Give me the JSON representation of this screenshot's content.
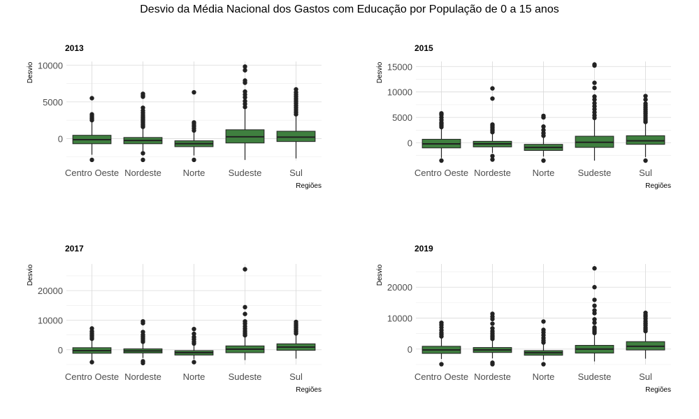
{
  "title": "Desvio da Média Nacional dos Gastos com Educação por População de 0 a 15 anos",
  "colors": {
    "box_fill": "#3f7f3f",
    "box_stroke": "#222222",
    "outlier": "#222222",
    "grid": "#d9d9d9"
  },
  "chart_data": [
    {
      "type": "boxplot",
      "title": "2013",
      "xlabel": "Regiões",
      "ylabel": "Desvio",
      "categories": [
        "Centro Oeste",
        "Nordeste",
        "Norte",
        "Sudeste",
        "Sul"
      ],
      "ylim": [
        -3000,
        10500
      ],
      "yticks": [
        0,
        5000,
        10000
      ],
      "grid": true,
      "boxes": [
        {
          "whisker_low": -2200,
          "q1": -700,
          "median": -150,
          "q3": 450,
          "whisker_high": 2300,
          "outliers": [
            -2900,
            2500,
            2700,
            2900,
            3100,
            3300,
            5500
          ]
        },
        {
          "whisker_low": -1700,
          "q1": -700,
          "median": -250,
          "q3": 150,
          "whisker_high": 1400,
          "outliers": [
            -2900,
            -2000,
            1600,
            1800,
            2000,
            2200,
            2400,
            2600,
            2800,
            3000,
            3200,
            3500,
            3800,
            4200,
            5700,
            5900,
            6100
          ]
        },
        {
          "whisker_low": -2300,
          "q1": -1100,
          "median": -700,
          "q3": -300,
          "whisker_high": 800,
          "outliers": [
            -2900,
            1100,
            1400,
            1700,
            2000,
            2200,
            6300
          ]
        },
        {
          "whisker_low": -2900,
          "q1": -600,
          "median": 250,
          "q3": 1200,
          "whisker_high": 4000,
          "outliers": [
            4300,
            4700,
            5100,
            5600,
            6000,
            6400,
            7600,
            7900,
            9300,
            9800
          ]
        },
        {
          "whisker_low": -2700,
          "q1": -400,
          "median": 200,
          "q3": 1000,
          "whisker_high": 3000,
          "outliers": [
            3300,
            3600,
            3900,
            4200,
            4500,
            4800,
            5100,
            5400,
            5700,
            6000,
            6300,
            6700
          ]
        }
      ]
    },
    {
      "type": "boxplot",
      "title": "2015",
      "xlabel": "Regiões",
      "ylabel": "Desvio",
      "categories": [
        "Centro Oeste",
        "Nordeste",
        "Norte",
        "Sudeste",
        "Sul"
      ],
      "ylim": [
        -3500,
        16000
      ],
      "yticks": [
        0,
        5000,
        10000,
        15000
      ],
      "grid": true,
      "boxes": [
        {
          "whisker_low": -3000,
          "q1": -1000,
          "median": -200,
          "q3": 700,
          "whisker_high": 2800,
          "outliers": [
            -3500,
            3100,
            3400,
            3700,
            4000,
            4500,
            5000,
            5500,
            5800
          ]
        },
        {
          "whisker_low": -2000,
          "q1": -800,
          "median": -200,
          "q3": 300,
          "whisker_high": 1800,
          "outliers": [
            -3300,
            -2600,
            2100,
            2400,
            2700,
            3000,
            3300,
            3600,
            8700,
            10700
          ]
        },
        {
          "whisker_low": -2700,
          "q1": -1500,
          "median": -900,
          "q3": -300,
          "whisker_high": 1100,
          "outliers": [
            -3500,
            1400,
            1900,
            2500,
            3200,
            5000,
            5300
          ]
        },
        {
          "whisker_low": -3500,
          "q1": -900,
          "median": 100,
          "q3": 1300,
          "whisker_high": 4500,
          "outliers": [
            4900,
            5400,
            6000,
            6600,
            7200,
            7800,
            8500,
            9100,
            10800,
            11800,
            15200,
            15400
          ]
        },
        {
          "whisker_low": -2800,
          "q1": -300,
          "median": 400,
          "q3": 1400,
          "whisker_high": 3700,
          "outliers": [
            -3500,
            4100,
            4500,
            4900,
            5300,
            5700,
            6100,
            6500,
            6900,
            7300,
            7700,
            8500,
            9200
          ]
        }
      ]
    },
    {
      "type": "boxplot",
      "title": "2017",
      "xlabel": "Regiões",
      "ylabel": "Desvio",
      "categories": [
        "Centro Oeste",
        "Nordeste",
        "Norte",
        "Sudeste",
        "Sul"
      ],
      "ylim": [
        -5000,
        29000
      ],
      "yticks": [
        0,
        10000,
        20000
      ],
      "grid": true,
      "boxes": [
        {
          "whisker_low": -3500,
          "q1": -1200,
          "median": -300,
          "q3": 700,
          "whisker_high": 3200,
          "outliers": [
            -4200,
            3700,
            4300,
            4900,
            5500,
            6200,
            7200
          ]
        },
        {
          "whisker_low": -2800,
          "q1": -1100,
          "median": -400,
          "q3": 300,
          "whisker_high": 2300,
          "outliers": [
            -4500,
            -3900,
            2700,
            3300,
            3900,
            4500,
            5100,
            6000,
            9000,
            9600
          ]
        },
        {
          "whisker_low": -3200,
          "q1": -1800,
          "median": -1000,
          "q3": -300,
          "whisker_high": 1700,
          "outliers": [
            -4200,
            2100,
            2700,
            3500,
            4300,
            5400,
            7000
          ]
        },
        {
          "whisker_low": -3500,
          "q1": -1000,
          "median": 200,
          "q3": 1300,
          "whisker_high": 4400,
          "outliers": [
            4900,
            5600,
            6300,
            7100,
            7900,
            8800,
            9600,
            12100,
            14400,
            27200
          ]
        },
        {
          "whisker_low": -3000,
          "q1": -200,
          "median": 900,
          "q3": 2000,
          "whisker_high": 5000,
          "outliers": [
            5500,
            6200,
            6900,
            7500,
            8100,
            8700,
            9400
          ]
        }
      ]
    },
    {
      "type": "boxplot",
      "title": "2019",
      "xlabel": "Regiões",
      "ylabel": "Desvio",
      "categories": [
        "Centro Oeste",
        "Nordeste",
        "Norte",
        "Sudeste",
        "Sul"
      ],
      "ylim": [
        -5000,
        27500
      ],
      "yticks": [
        0,
        10000,
        20000
      ],
      "grid": true,
      "boxes": [
        {
          "whisker_low": -3200,
          "q1": -1400,
          "median": -300,
          "q3": 900,
          "whisker_high": 3600,
          "outliers": [
            -4900,
            4100,
            4700,
            5300,
            6100,
            7000,
            7800,
            8500
          ]
        },
        {
          "whisker_low": -3000,
          "q1": -1100,
          "median": -300,
          "q3": 500,
          "whisker_high": 2800,
          "outliers": [
            -4900,
            -4400,
            3300,
            3900,
            4500,
            5100,
            5800,
            6700,
            8200,
            9700,
            10500,
            11400
          ]
        },
        {
          "whisker_low": -3500,
          "q1": -2000,
          "median": -1200,
          "q3": -500,
          "whisker_high": 1600,
          "outliers": [
            -4900,
            2100,
            2800,
            3600,
            4500,
            5400,
            6200,
            8900
          ]
        },
        {
          "whisker_low": -4000,
          "q1": -1300,
          "median": 0,
          "q3": 1200,
          "whisker_high": 4700,
          "outliers": [
            5200,
            5800,
            6400,
            7000,
            8500,
            9600,
            11600,
            12500,
            14000,
            15900,
            20000,
            26100
          ]
        },
        {
          "whisker_low": -3100,
          "q1": -300,
          "median": 900,
          "q3": 2400,
          "whisker_high": 5300,
          "outliers": [
            5800,
            6400,
            7000,
            7700,
            8300,
            9000,
            9800,
            10500,
            11000,
            11700
          ]
        }
      ]
    }
  ]
}
